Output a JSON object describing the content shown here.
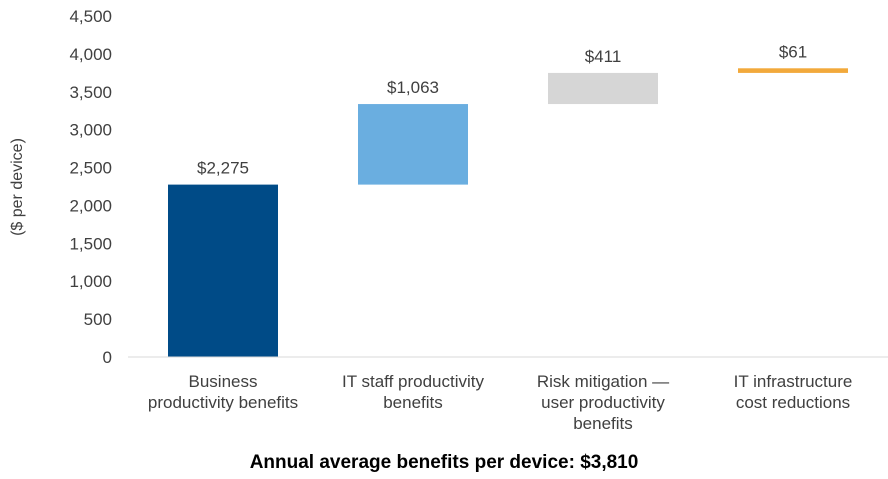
{
  "chart_data": {
    "type": "bar",
    "subtype": "waterfall",
    "categories": [
      [
        "Business",
        "productivity benefits"
      ],
      [
        "IT staff productivity",
        "benefits"
      ],
      [
        "Risk mitigation —",
        "user productivity",
        "benefits"
      ],
      [
        "IT infrastructure",
        "cost reductions"
      ]
    ],
    "values": [
      2275,
      1063,
      411,
      61
    ],
    "data_labels": [
      "$2,275",
      "$1,063",
      "$411",
      "$61"
    ],
    "colors": [
      "#004b87",
      "#6aaee0",
      "#d6d6d6",
      "#f2a93b"
    ],
    "ylabel": "($ per device)",
    "ylim": [
      0,
      4500
    ],
    "yticks": [
      0,
      500,
      1000,
      1500,
      2000,
      2500,
      3000,
      3500,
      4000,
      4500
    ],
    "ytick_labels": [
      "0",
      "500",
      "1,000",
      "1,500",
      "2,000",
      "2,500",
      "3,000",
      "3,500",
      "4,000",
      "4,500"
    ],
    "grid": false,
    "caption": "Annual average benefits per device: $3,810"
  }
}
